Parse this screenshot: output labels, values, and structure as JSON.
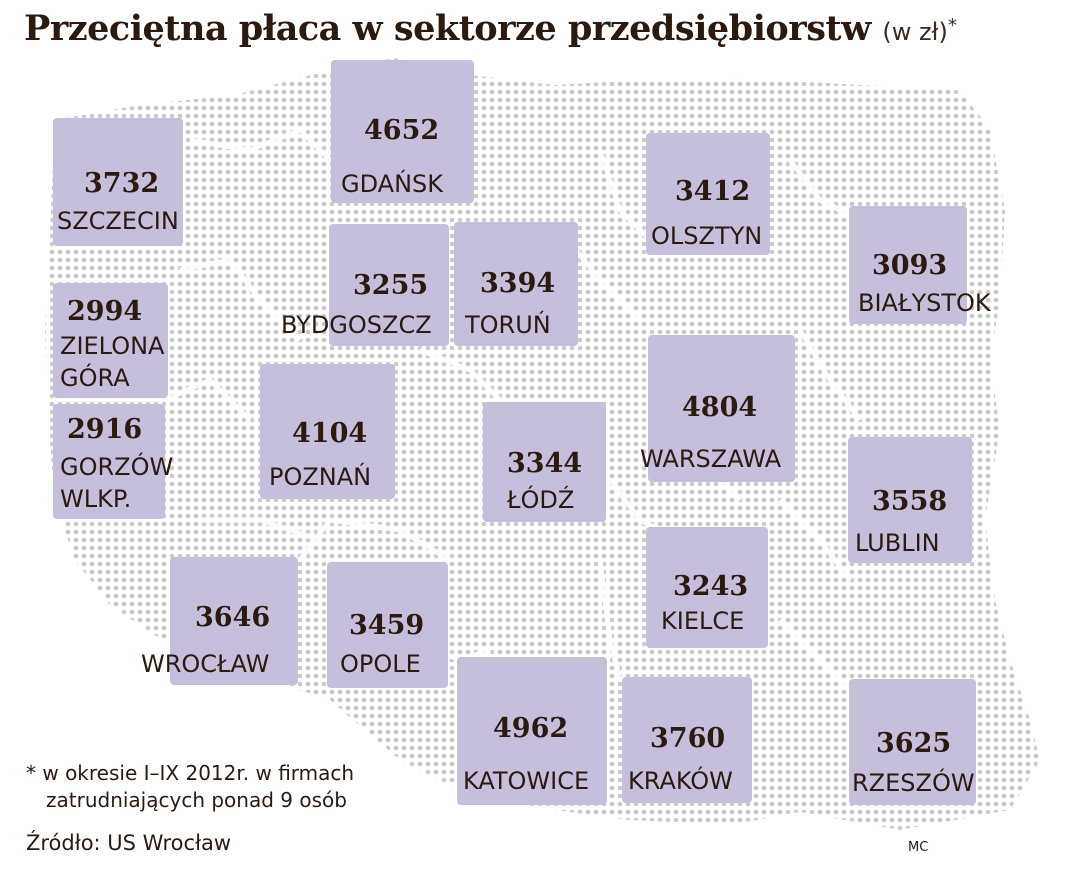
{
  "title": {
    "main": "Przeciętna płaca w sektorze przedsiębiorstw",
    "unit": "(w zł)",
    "asterisk": "*"
  },
  "cities": {
    "szczecin": {
      "name": "SZCZECIN",
      "value": "3732"
    },
    "gdansk": {
      "name": "GDAŃSK",
      "value": "4652"
    },
    "olsztyn": {
      "name": "OLSZTYN",
      "value": "3412"
    },
    "bialystok": {
      "name": "BIAŁYSTOK",
      "value": "3093"
    },
    "zielona_gora": {
      "name_line1": "ZIELONA",
      "name_line2": "GÓRA",
      "value": "2994"
    },
    "bydgoszcz": {
      "name": "BYDGOSZCZ",
      "value": "3255"
    },
    "torun": {
      "name": "TORUŃ",
      "value": "3394"
    },
    "gorzow": {
      "name_line1": "GORZÓW",
      "name_line2": "WLKP.",
      "value": "2916"
    },
    "poznan": {
      "name": "POZNAŃ",
      "value": "4104"
    },
    "lodz": {
      "name": "ŁÓDŹ",
      "value": "3344"
    },
    "warszawa": {
      "name": "WARSZAWA",
      "value": "4804"
    },
    "lublin": {
      "name": "LUBLIN",
      "value": "3558"
    },
    "wroclaw": {
      "name": "WROCŁAW",
      "value": "3646"
    },
    "opole": {
      "name": "OPOLE",
      "value": "3459"
    },
    "kielce": {
      "name": "KIELCE",
      "value": "3243"
    },
    "katowice": {
      "name": "KATOWICE",
      "value": "4962"
    },
    "krakow": {
      "name": "KRAKÓW",
      "value": "3760"
    },
    "rzeszow": {
      "name": "RZESZÓW",
      "value": "3625"
    }
  },
  "footnote": {
    "line1": "* w okresie I–IX 2012r. w firmach",
    "line2": "zatrudniających ponad 9 osób"
  },
  "source": "Źródło: US Wrocław",
  "credit": "MC",
  "colors": {
    "tile": "#c6bfdc",
    "text": "#2b1a10",
    "map_dots": "#c9c9c9"
  }
}
